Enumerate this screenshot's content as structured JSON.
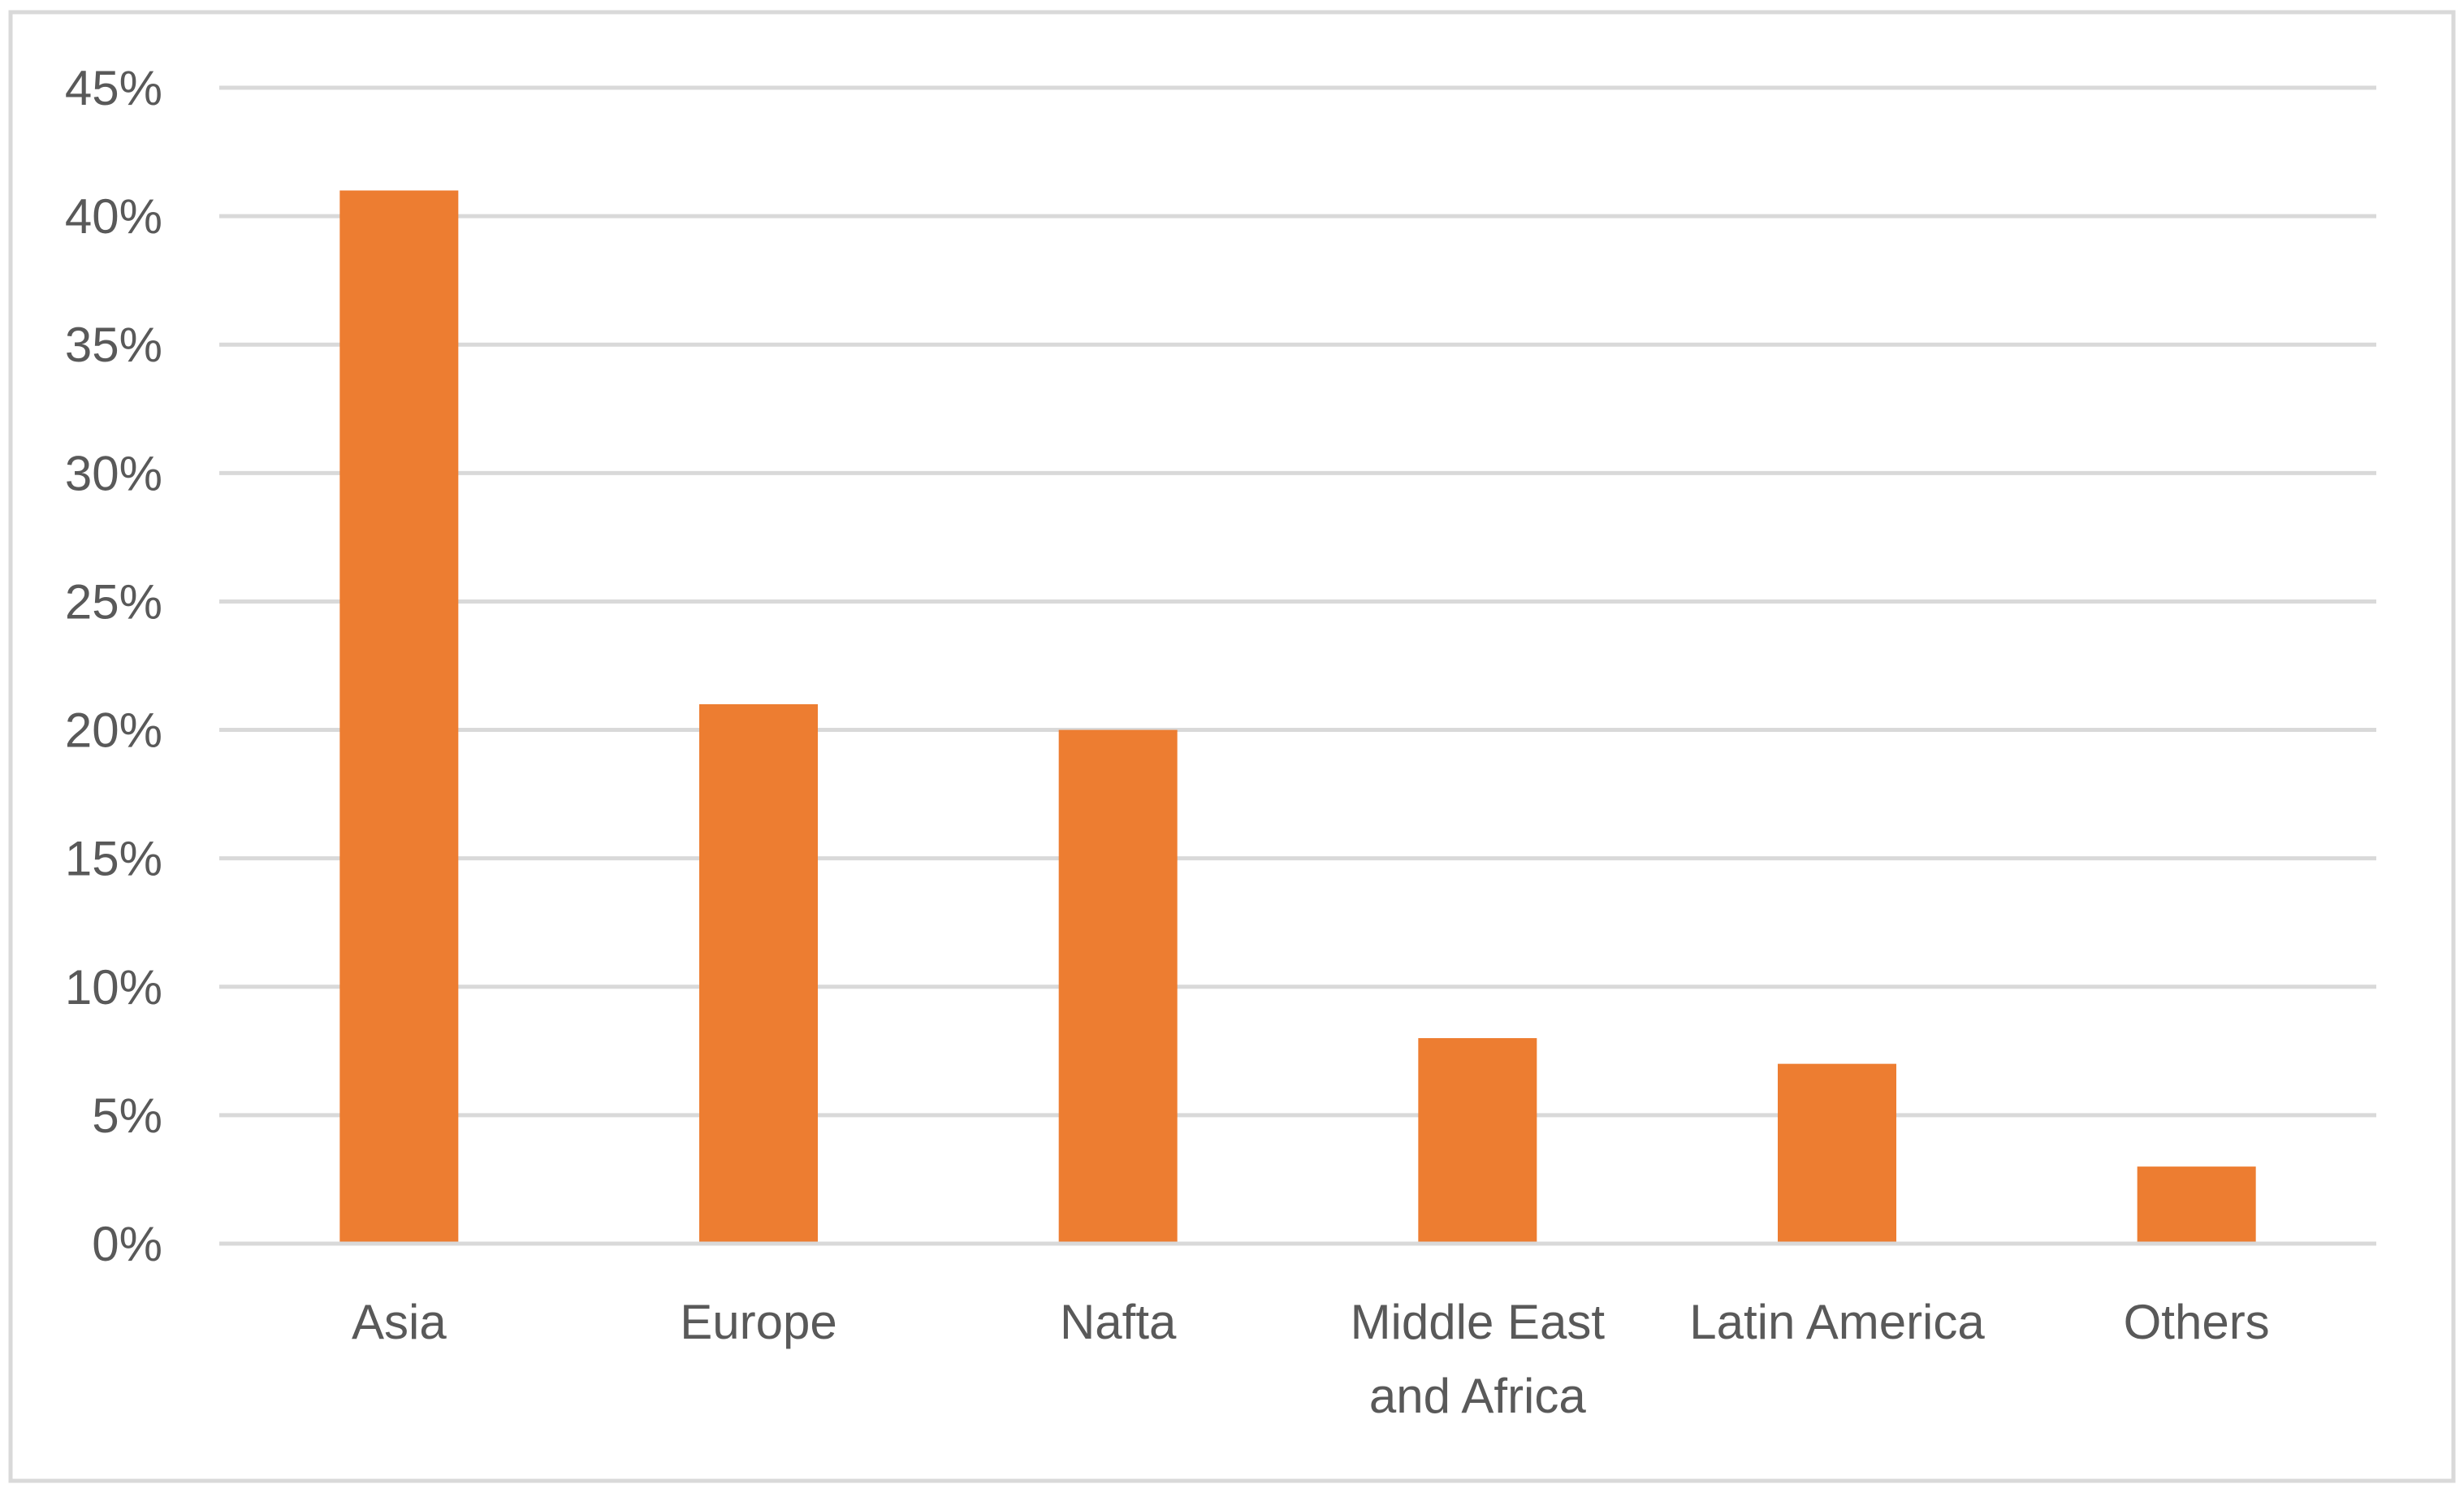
{
  "chart_data": {
    "type": "bar",
    "categories": [
      "Asia",
      "Europe",
      "Nafta",
      "Middle East and Africa",
      "Latin America",
      "Others"
    ],
    "category_label_lines": [
      [
        "Asia"
      ],
      [
        "Europe"
      ],
      [
        "Nafta"
      ],
      [
        "Middle East",
        "and Africa"
      ],
      [
        "Latin America"
      ],
      [
        "Others"
      ]
    ],
    "values": [
      41,
      21,
      20,
      8,
      7,
      3
    ],
    "unit": "%",
    "ylim": [
      0,
      45
    ],
    "yticks": [
      0,
      5,
      10,
      15,
      20,
      25,
      30,
      35,
      40,
      45
    ],
    "ytick_labels": [
      "0%",
      "5%",
      "10%",
      "15%",
      "20%",
      "25%",
      "30%",
      "35%",
      "40%",
      "45%"
    ],
    "title": "",
    "xlabel": "",
    "ylabel": "",
    "grid": true,
    "legend": "none",
    "colors": {
      "bar": "#ED7D31",
      "grid": "#D9D9D9",
      "text": "#595959",
      "frame": "#D9D9D9"
    }
  }
}
